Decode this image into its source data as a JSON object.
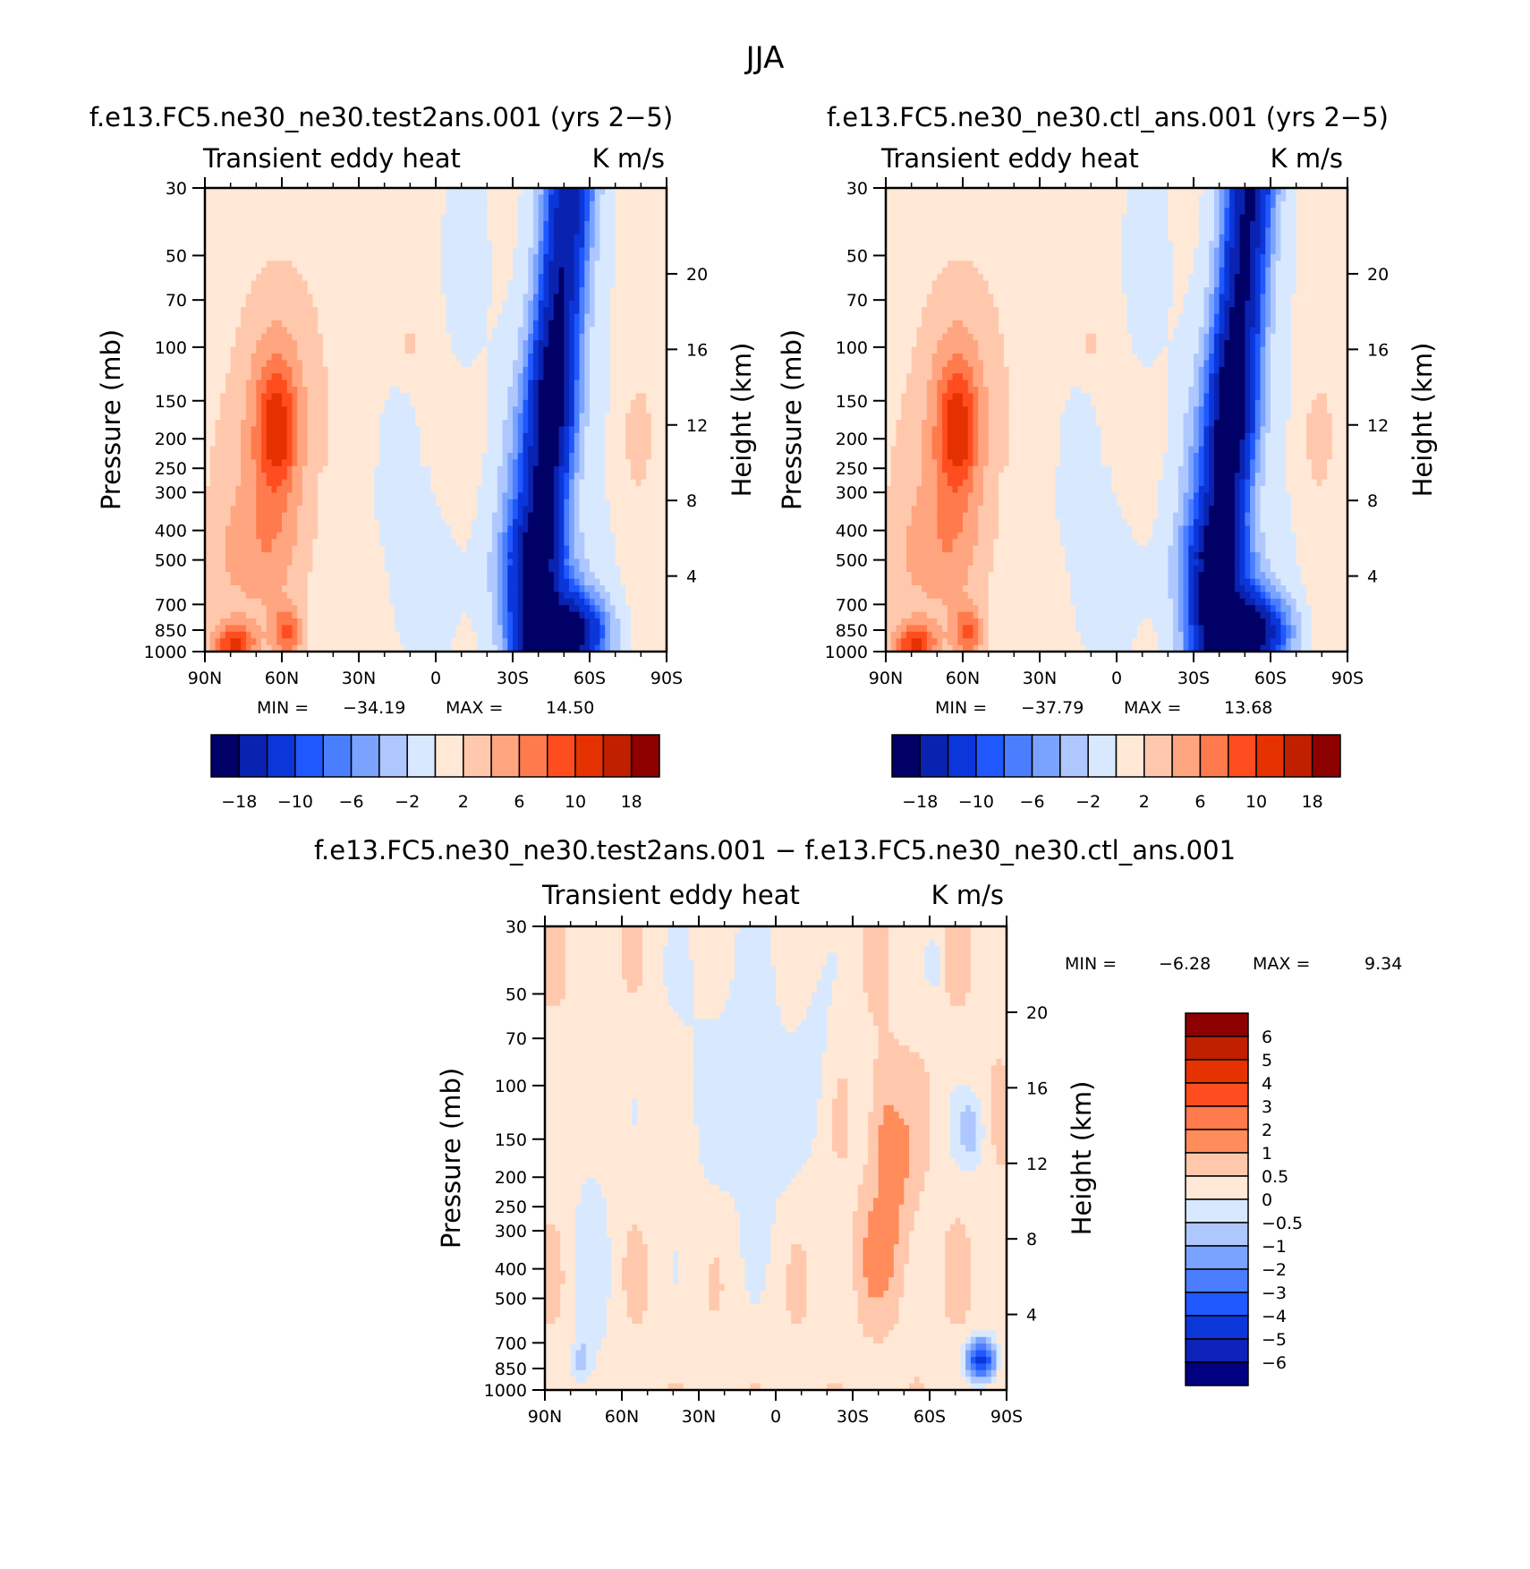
{
  "figure": {
    "title": "JJA"
  },
  "palettes": {
    "abs": [
      "#000066",
      "#0a22b0",
      "#0b36d9",
      "#1f58ff",
      "#4a7eff",
      "#7aa3ff",
      "#aec8ff",
      "#d8e9ff",
      "#ffe8d6",
      "#ffc8ad",
      "#ffa580",
      "#ff7a4c",
      "#ff4d1f",
      "#e63100",
      "#c02000",
      "#8c0000"
    ],
    "diff": [
      "#000080",
      "#0c22b8",
      "#0b36d9",
      "#1f58ff",
      "#4a7eff",
      "#7aa3ff",
      "#aec8ff",
      "#d8e9ff",
      "#ffe8d6",
      "#ffc8ad",
      "#ff8c5a",
      "#ff7a4c",
      "#ff4d1f",
      "#e63100",
      "#c02000",
      "#8c0000"
    ]
  },
  "chart_data": [
    {
      "id": "panel-test",
      "type": "heatmap",
      "title": "f.e13.FC5.ne30_ne30.test2ans.001 (yrs 2−5)",
      "variable": "Transient eddy heat",
      "units": "K m/s",
      "xlabel": "",
      "ylabel": "Pressure (mb)",
      "ylabel_right": "Height (km)",
      "x_ticks": [
        "90N",
        "60N",
        "30N",
        "0",
        "30S",
        "60S",
        "90S"
      ],
      "y_ticks": [
        "30",
        "50",
        "70",
        "100",
        "150",
        "200",
        "250",
        "300",
        "400",
        "500",
        "700",
        "850",
        "1000"
      ],
      "y_ticks_right": [
        "20",
        "16",
        "12",
        "8",
        "4"
      ],
      "min_label": "MIN =",
      "min_value": "−34.19",
      "max_label": "MAX =",
      "max_value": "14.50",
      "colorbar_labels": [
        "−18",
        "−10",
        "−6",
        "−2",
        "2",
        "6",
        "10",
        "18"
      ],
      "features": [
        {
          "lat": 62,
          "p": 200,
          "value": 12
        },
        {
          "lat": 80,
          "p": 950,
          "value": 14.5
        },
        {
          "lat": 58,
          "p": 900,
          "value": 10
        },
        {
          "lat": -52,
          "p": 30,
          "value": -18
        },
        {
          "lat": -45,
          "p": 160,
          "value": -22
        },
        {
          "lat": -52,
          "p": 880,
          "value": -34.19
        },
        {
          "lat": -75,
          "p": 200,
          "value": 2
        }
      ]
    },
    {
      "id": "panel-ctl",
      "type": "heatmap",
      "title": "f.e13.FC5.ne30_ne30.ctl_ans.001 (yrs 2−5)",
      "variable": "Transient eddy heat",
      "units": "K m/s",
      "xlabel": "",
      "ylabel": "Pressure (mb)",
      "ylabel_right": "Height (km)",
      "x_ticks": [
        "90N",
        "60N",
        "30N",
        "0",
        "30S",
        "60S",
        "90S"
      ],
      "y_ticks": [
        "30",
        "50",
        "70",
        "100",
        "150",
        "200",
        "250",
        "300",
        "400",
        "500",
        "700",
        "850",
        "1000"
      ],
      "y_ticks_right": [
        "20",
        "16",
        "12",
        "8",
        "4"
      ],
      "min_label": "MIN =",
      "min_value": "−37.79",
      "max_label": "MAX =",
      "max_value": "13.68",
      "colorbar_labels": [
        "−18",
        "−10",
        "−6",
        "−2",
        "2",
        "6",
        "10",
        "18"
      ],
      "features": [
        {
          "lat": 62,
          "p": 200,
          "value": 11
        },
        {
          "lat": 80,
          "p": 950,
          "value": 13.68
        },
        {
          "lat": 58,
          "p": 900,
          "value": 10
        },
        {
          "lat": -50,
          "p": 30,
          "value": -18
        },
        {
          "lat": -45,
          "p": 160,
          "value": -21
        },
        {
          "lat": -52,
          "p": 880,
          "value": -37.79
        },
        {
          "lat": -75,
          "p": 200,
          "value": 2
        }
      ]
    },
    {
      "id": "panel-diff",
      "type": "heatmap",
      "title": "f.e13.FC5.ne30_ne30.test2ans.001 − f.e13.FC5.ne30_ne30.ctl_ans.001",
      "variable": "Transient eddy heat",
      "units": "K m/s",
      "xlabel": "",
      "ylabel": "Pressure (mb)",
      "ylabel_right": "Height (km)",
      "x_ticks": [
        "90N",
        "60N",
        "30N",
        "0",
        "30S",
        "60S",
        "90S"
      ],
      "y_ticks": [
        "30",
        "50",
        "70",
        "100",
        "150",
        "200",
        "250",
        "300",
        "400",
        "500",
        "700",
        "850",
        "1000"
      ],
      "y_ticks_right": [
        "20",
        "16",
        "12",
        "8",
        "4"
      ],
      "min_label": "MIN =",
      "min_value": "−6.28",
      "max_label": "MAX =",
      "max_value": "9.34",
      "colorbar_labels": [
        "6",
        "5",
        "4",
        "3",
        "2",
        "1",
        "0.5",
        "0",
        "−0.5",
        "−1",
        "−2",
        "−3",
        "−4",
        "−5",
        "−6"
      ],
      "features": [
        {
          "lat": -42,
          "p": 200,
          "value": 1.5
        },
        {
          "lat": -40,
          "p": 450,
          "value": 1.2
        },
        {
          "lat": -72,
          "p": 150,
          "value": -0.8
        },
        {
          "lat": -78,
          "p": 850,
          "value": -5
        },
        {
          "lat": 77,
          "p": 800,
          "value": -0.8
        },
        {
          "lat": -68,
          "p": 1000,
          "value": 9.34
        }
      ]
    }
  ]
}
